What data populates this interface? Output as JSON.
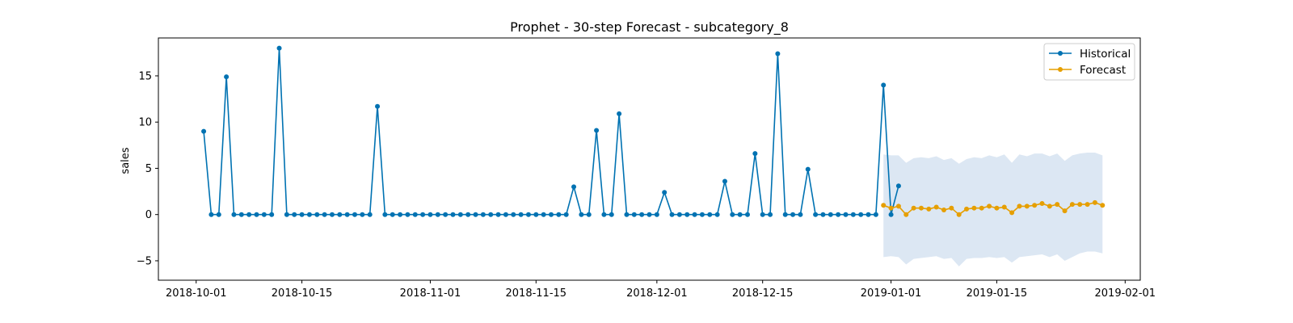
{
  "chart_data": {
    "type": "line",
    "title": "Prophet - 30-step Forecast - subcategory_8",
    "xlabel": "",
    "ylabel": "sales",
    "ylim": [
      -7.1,
      19.1
    ],
    "xlim": [
      "2018-09-26",
      "2019-02-03"
    ],
    "grid": false,
    "legend_position": "top-right",
    "x_ticks": [
      "2018-10-01",
      "2018-10-15",
      "2018-11-01",
      "2018-11-15",
      "2018-12-01",
      "2018-12-15",
      "2019-01-01",
      "2019-01-15",
      "2019-02-01"
    ],
    "y_ticks": [
      -5,
      0,
      5,
      10,
      15
    ],
    "y_tick_labels": [
      "−5",
      "0",
      "5",
      "10",
      "15"
    ],
    "series": [
      {
        "name": "Historical",
        "color": "#0072B2",
        "x_start": "2018-10-02",
        "values": [
          9.0,
          0,
          0,
          14.9,
          0,
          0,
          0,
          0,
          0,
          0,
          18.0,
          0,
          0,
          0,
          0,
          0,
          0,
          0,
          0,
          0,
          0,
          0,
          0,
          11.7,
          0,
          0,
          0,
          0,
          0,
          0,
          0,
          0,
          0,
          0,
          0,
          0,
          0,
          0,
          0,
          0,
          0,
          0,
          0,
          0,
          0,
          0,
          0,
          0,
          0,
          3.0,
          0,
          0,
          9.1,
          0,
          0,
          10.9,
          0,
          0,
          0,
          0,
          0,
          2.4,
          0,
          0,
          0,
          0,
          0,
          0,
          0,
          3.6,
          0,
          0,
          0,
          6.6,
          0,
          0,
          17.4,
          0,
          0,
          0,
          4.9,
          0,
          0,
          0,
          0,
          0,
          0,
          0,
          0,
          0,
          14.0,
          0,
          3.1
        ]
      },
      {
        "name": "Forecast",
        "color": "#E69F00",
        "x_start": "2018-12-31",
        "values": [
          1.0,
          0.7,
          0.9,
          0.0,
          0.7,
          0.7,
          0.6,
          0.8,
          0.5,
          0.7,
          0.0,
          0.6,
          0.7,
          0.7,
          0.9,
          0.7,
          0.8,
          0.2,
          0.9,
          0.9,
          1.0,
          1.2,
          0.9,
          1.1,
          0.4,
          1.1,
          1.1,
          1.1,
          1.3,
          1.0
        ],
        "lower": [
          -4.6,
          -4.5,
          -4.6,
          -5.4,
          -4.8,
          -4.7,
          -4.6,
          -4.5,
          -4.8,
          -4.7,
          -5.6,
          -4.8,
          -4.7,
          -4.7,
          -4.6,
          -4.7,
          -4.6,
          -5.2,
          -4.6,
          -4.5,
          -4.4,
          -4.3,
          -4.6,
          -4.3,
          -5.0,
          -4.6,
          -4.2,
          -4.0,
          -4.0,
          -4.2
        ],
        "upper": [
          6.5,
          6.4,
          6.4,
          5.6,
          6.1,
          6.2,
          6.1,
          6.3,
          5.9,
          6.1,
          5.5,
          6.0,
          6.2,
          6.1,
          6.4,
          6.2,
          6.5,
          5.6,
          6.5,
          6.3,
          6.6,
          6.6,
          6.3,
          6.6,
          5.8,
          6.4,
          6.6,
          6.7,
          6.7,
          6.4
        ]
      }
    ],
    "interval_color": "#dce7f3"
  }
}
